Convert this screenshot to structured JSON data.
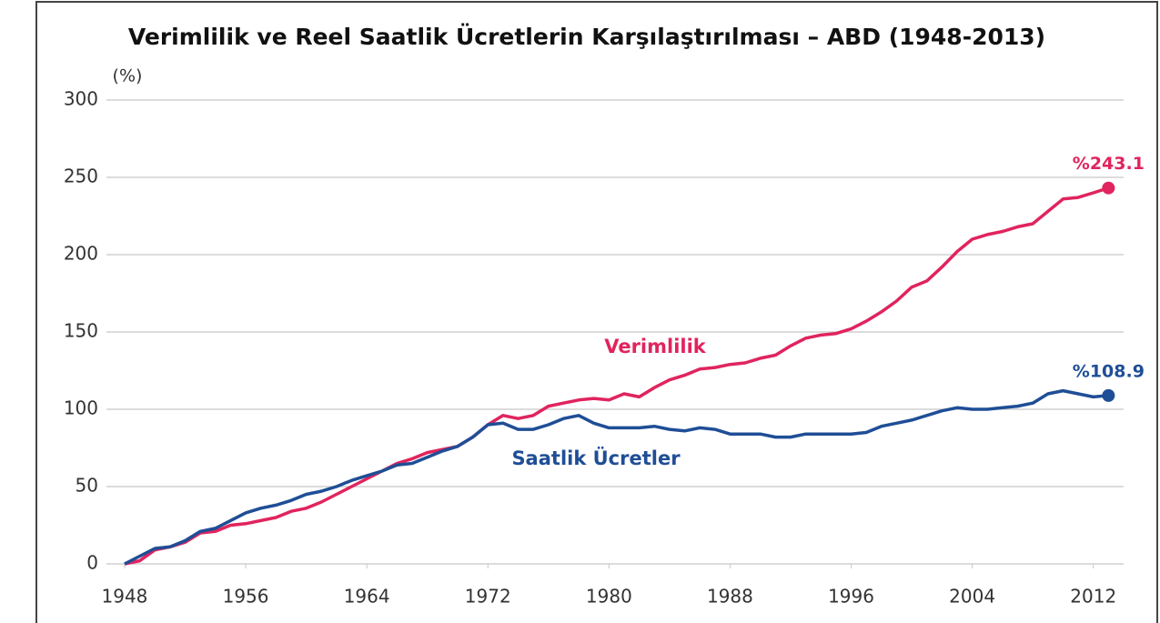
{
  "chart_data": {
    "type": "line",
    "title": "Verimlilik ve Reel Saatlik Ücretlerin Karşılaştırılması – ABD (1948-2013)",
    "y_label": "(%)",
    "x": [
      1948,
      1949,
      1950,
      1951,
      1952,
      1953,
      1954,
      1955,
      1956,
      1957,
      1958,
      1959,
      1960,
      1961,
      1962,
      1963,
      1964,
      1965,
      1966,
      1967,
      1968,
      1969,
      1970,
      1971,
      1972,
      1973,
      1974,
      1975,
      1976,
      1977,
      1978,
      1979,
      1980,
      1981,
      1982,
      1983,
      1984,
      1985,
      1986,
      1987,
      1988,
      1989,
      1990,
      1991,
      1992,
      1993,
      1994,
      1995,
      1996,
      1997,
      1998,
      1999,
      2000,
      2001,
      2002,
      2003,
      2004,
      2005,
      2006,
      2007,
      2008,
      2009,
      2010,
      2011,
      2012,
      2013
    ],
    "series": [
      {
        "name": "Verimlilik",
        "color": "#e0245e",
        "values": [
          0,
          2,
          9,
          11,
          14,
          20,
          21,
          25,
          26,
          28,
          30,
          34,
          36,
          40,
          45,
          50,
          55,
          60,
          65,
          68,
          72,
          74,
          76,
          82,
          90,
          96,
          94,
          96,
          102,
          104,
          106,
          107,
          106,
          110,
          108,
          114,
          119,
          122,
          126,
          127,
          129,
          130,
          133,
          135,
          141,
          146,
          148,
          149,
          152,
          157,
          163,
          170,
          179,
          183,
          192,
          202,
          210,
          213,
          215,
          218,
          220,
          228,
          236,
          237,
          240,
          243.1
        ],
        "value_labels": [
          null,
          null,
          null,
          null,
          null,
          null,
          null,
          null,
          null,
          null,
          null,
          null,
          null,
          null,
          null,
          null,
          null,
          null,
          null,
          null,
          null,
          null,
          null,
          null,
          null,
          null,
          null,
          null,
          null,
          null,
          null,
          null,
          null,
          null,
          null,
          null,
          null,
          null,
          null,
          null,
          null,
          null,
          null,
          null,
          null,
          null,
          null,
          null,
          null,
          null,
          null,
          null,
          null,
          null,
          null,
          null,
          null,
          null,
          null,
          null,
          null,
          null,
          null,
          null,
          null,
          "%243.1"
        ]
      },
      {
        "name": "Saatlik Ücretler",
        "color": "#1f4e96",
        "values": [
          0,
          5,
          10,
          11,
          15,
          21,
          23,
          28,
          33,
          36,
          38,
          41,
          45,
          47,
          50,
          54,
          57,
          60,
          64,
          65,
          69,
          73,
          76,
          82,
          90,
          91,
          87,
          87,
          90,
          94,
          96,
          91,
          88,
          88,
          88,
          89,
          87,
          86,
          88,
          87,
          84,
          84,
          84,
          82,
          82,
          84,
          84,
          84,
          84,
          85,
          89,
          91,
          93,
          96,
          99,
          101,
          100,
          100,
          101,
          102,
          104,
          110,
          112,
          110,
          108,
          108.9
        ],
        "value_labels": [
          null,
          null,
          null,
          null,
          null,
          null,
          null,
          null,
          null,
          null,
          null,
          null,
          null,
          null,
          null,
          null,
          null,
          null,
          null,
          null,
          null,
          null,
          null,
          null,
          null,
          null,
          null,
          null,
          null,
          null,
          null,
          null,
          null,
          null,
          null,
          null,
          null,
          null,
          null,
          null,
          null,
          null,
          null,
          null,
          null,
          null,
          null,
          null,
          null,
          null,
          null,
          null,
          null,
          null,
          null,
          null,
          null,
          null,
          null,
          null,
          null,
          null,
          null,
          null,
          null,
          "%108.9"
        ]
      }
    ],
    "xlim": [
      1946.8,
      2014
    ],
    "xticks": [
      1948,
      1956,
      1964,
      1972,
      1980,
      1988,
      1996,
      2004,
      2012
    ],
    "ylim": [
      0,
      300
    ],
    "yticks": [
      0,
      50,
      100,
      150,
      200,
      250,
      300
    ],
    "grid": true
  }
}
